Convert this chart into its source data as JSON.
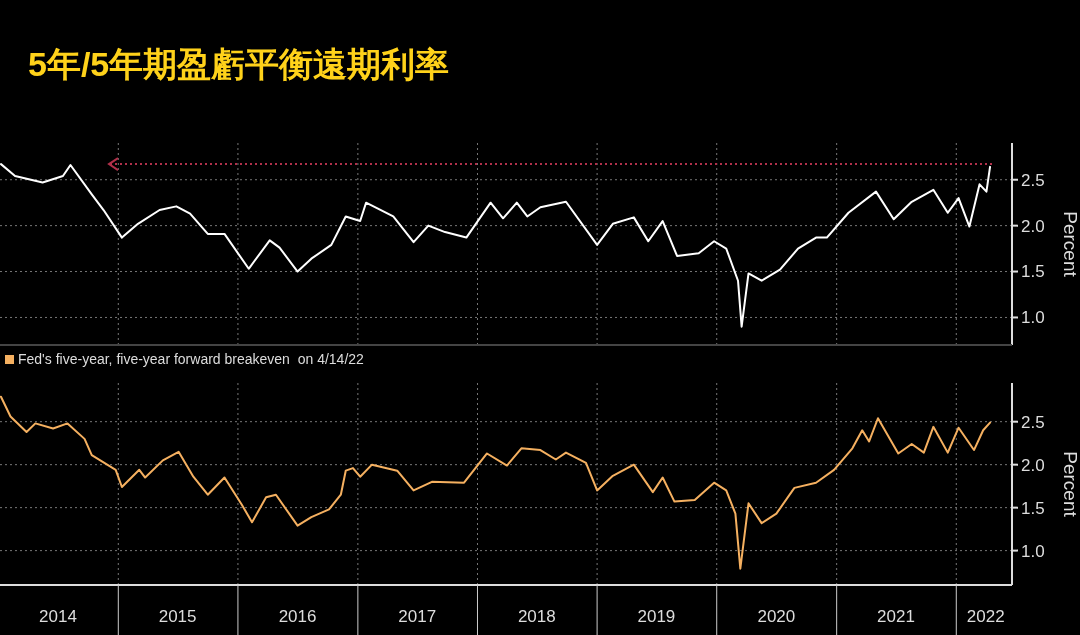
{
  "chart_data": [
    {
      "type": "line",
      "title": "5年/5年期盈虧平衡遠期利率",
      "ylabel": "Percent",
      "xlim": [
        "2014-01-05",
        "2022-06-20"
      ],
      "ylim": [
        0.7,
        2.9
      ],
      "yticks": [
        {
          "value": 1,
          "label": "1.0"
        },
        {
          "value": 1.5,
          "label": "1.5"
        },
        {
          "value": 2,
          "label": "2.0"
        },
        {
          "value": 2.5,
          "label": "2.5"
        }
      ],
      "xticks": [
        {
          "value": "2015-01-01",
          "label": null
        },
        {
          "value": "2016-01-01",
          "label": null
        },
        {
          "value": "2017-01-01",
          "label": null
        },
        {
          "value": "2018-01-01",
          "label": null
        },
        {
          "value": "2019-01-01",
          "label": null
        },
        {
          "value": "2020-01-01",
          "label": null
        },
        {
          "value": "2021-01-01",
          "label": null
        },
        {
          "value": "2022-01-01",
          "label": null
        }
      ],
      "tick_labels": "y",
      "grid": true,
      "ref_lines": [
        {
          "axis": "y",
          "value": 2.67,
          "color": "#b0304a",
          "line_style": "dotted"
        }
      ],
      "x": [
        "2014-01-08",
        "2014-02-20",
        "2014-05-15",
        "2014-07-16",
        "2014-08-08",
        "2014-10-12",
        "2014-11-17",
        "2015-01-12",
        "2015-03-02",
        "2015-05-07",
        "2015-06-27",
        "2015-08-08",
        "2015-10-01",
        "2015-11-21",
        "2016-02-03",
        "2016-04-07",
        "2016-05-07",
        "2016-07-01",
        "2016-08-12",
        "2016-10-12",
        "2016-11-25",
        "2017-01-08",
        "2017-01-26",
        "2017-04-19",
        "2017-06-20",
        "2017-08-04",
        "2017-09-24",
        "2017-11-28",
        "2018-02-10",
        "2018-03-20",
        "2018-05-01",
        "2018-06-02",
        "2018-07-12",
        "2018-09-28",
        "2019-01-01",
        "2019-02-18",
        "2019-04-23",
        "2019-06-06",
        "2019-07-20",
        "2019-09-02",
        "2019-11-07",
        "2019-12-24",
        "2020-01-30",
        "2020-03-06",
        "2020-03-17",
        "2020-04-07",
        "2020-05-17",
        "2020-07-12",
        "2020-09-05",
        "2020-10-30",
        "2020-12-02",
        "2021-02-06",
        "2021-05-01",
        "2021-06-24",
        "2021-08-18",
        "2021-10-23",
        "2021-12-06",
        "2022-01-08",
        "2022-02-10",
        "2022-03-13",
        "2022-04-03",
        "2022-04-14"
      ],
      "series": [
        {
          "color": "#ffffff",
          "values": [
            2.67,
            2.54,
            2.47,
            2.54,
            2.66,
            2.34,
            2.17,
            1.87,
            2.02,
            2.17,
            2.21,
            2.13,
            1.91,
            1.91,
            1.53,
            1.84,
            1.76,
            1.5,
            1.64,
            1.79,
            2.1,
            2.05,
            2.25,
            2.1,
            1.82,
            2.0,
            1.93,
            1.87,
            2.25,
            2.08,
            2.25,
            2.1,
            2.2,
            2.26,
            1.79,
            2.02,
            2.09,
            1.83,
            2.05,
            1.67,
            1.7,
            1.83,
            1.75,
            1.4,
            0.9,
            1.48,
            1.4,
            1.52,
            1.75,
            1.87,
            1.87,
            2.14,
            2.37,
            2.07,
            2.26,
            2.39,
            2.14,
            2.3,
            1.99,
            2.45,
            2.37,
            2.64
          ]
        }
      ]
    },
    {
      "type": "line",
      "ylabel": "Percent",
      "xlim": [
        "2014-01-05",
        "2022-06-20"
      ],
      "ylim": [
        0.6,
        2.95
      ],
      "yticks": [
        {
          "value": 1,
          "label": "1.0"
        },
        {
          "value": 1.5,
          "label": "1.5"
        },
        {
          "value": 2,
          "label": "2.0"
        },
        {
          "value": 2.5,
          "label": "2.5"
        }
      ],
      "xticks": [
        {
          "value": "2014-07-01",
          "label": "2014"
        },
        {
          "value": "2015-01-01",
          "label": null
        },
        {
          "value": "2015-07-01",
          "label": "2015"
        },
        {
          "value": "2016-01-01",
          "label": null
        },
        {
          "value": "2016-07-01",
          "label": "2016"
        },
        {
          "value": "2017-01-01",
          "label": null
        },
        {
          "value": "2017-07-01",
          "label": "2017"
        },
        {
          "value": "2018-01-01",
          "label": null
        },
        {
          "value": "2018-07-01",
          "label": "2018"
        },
        {
          "value": "2019-01-01",
          "label": null
        },
        {
          "value": "2019-07-01",
          "label": "2019"
        },
        {
          "value": "2020-01-01",
          "label": null
        },
        {
          "value": "2020-07-01",
          "label": "2020"
        },
        {
          "value": "2021-01-01",
          "label": null
        },
        {
          "value": "2021-07-01",
          "label": "2021"
        },
        {
          "value": "2022-01-01",
          "label": null
        },
        {
          "value": "2022-04-01",
          "label": "2022"
        }
      ],
      "grid": true,
      "legend": "top left",
      "x": [
        "2014-01-08",
        "2014-02-06",
        "2014-03-27",
        "2014-04-23",
        "2014-06-16",
        "2014-07-30",
        "2014-09-20",
        "2014-10-12",
        "2014-12-24",
        "2015-01-12",
        "2015-03-06",
        "2015-03-24",
        "2015-05-17",
        "2015-07-04",
        "2015-08-18",
        "2015-10-01",
        "2015-11-21",
        "2016-01-12",
        "2016-02-13",
        "2016-03-27",
        "2016-04-26",
        "2016-07-01",
        "2016-08-12",
        "2016-10-05",
        "2016-11-10",
        "2016-11-25",
        "2016-12-17",
        "2017-01-08",
        "2017-02-13",
        "2017-05-01",
        "2017-06-20",
        "2017-08-15",
        "2017-11-21",
        "2018-01-30",
        "2018-04-01",
        "2018-05-15",
        "2018-07-12",
        "2018-08-28",
        "2018-09-28",
        "2018-11-28",
        "2019-01-01",
        "2019-02-18",
        "2019-04-23",
        "2019-06-20",
        "2019-07-20",
        "2019-08-25",
        "2019-10-26",
        "2019-12-24",
        "2020-01-30",
        "2020-02-27",
        "2020-03-13",
        "2020-04-07",
        "2020-05-17",
        "2020-07-01",
        "2020-08-25",
        "2020-10-30",
        "2020-12-24",
        "2021-02-18",
        "2021-03-20",
        "2021-04-10",
        "2021-05-07",
        "2021-07-08",
        "2021-08-18",
        "2021-09-24",
        "2021-10-23",
        "2021-12-06",
        "2022-01-08",
        "2022-02-24",
        "2022-03-24",
        "2022-04-14"
      ],
      "series": [
        {
          "name": "Fed's five-year, five-year forward breakeven  on 4/14/22",
          "color": "#f5b060",
          "values": [
            2.79,
            2.56,
            2.38,
            2.48,
            2.42,
            2.48,
            2.3,
            2.11,
            1.94,
            1.74,
            1.94,
            1.85,
            2.05,
            2.15,
            1.86,
            1.65,
            1.85,
            1.54,
            1.33,
            1.62,
            1.65,
            1.29,
            1.39,
            1.48,
            1.65,
            1.93,
            1.96,
            1.86,
            2.0,
            1.93,
            1.7,
            1.8,
            1.79,
            2.13,
            1.99,
            2.19,
            2.17,
            2.06,
            2.14,
            2.02,
            1.7,
            1.87,
            2.0,
            1.68,
            1.85,
            1.57,
            1.59,
            1.79,
            1.7,
            1.43,
            0.79,
            1.55,
            1.32,
            1.43,
            1.73,
            1.79,
            1.94,
            2.19,
            2.4,
            2.27,
            2.54,
            2.13,
            2.24,
            2.14,
            2.44,
            2.14,
            2.43,
            2.17,
            2.4,
            2.49
          ]
        }
      ]
    }
  ]
}
